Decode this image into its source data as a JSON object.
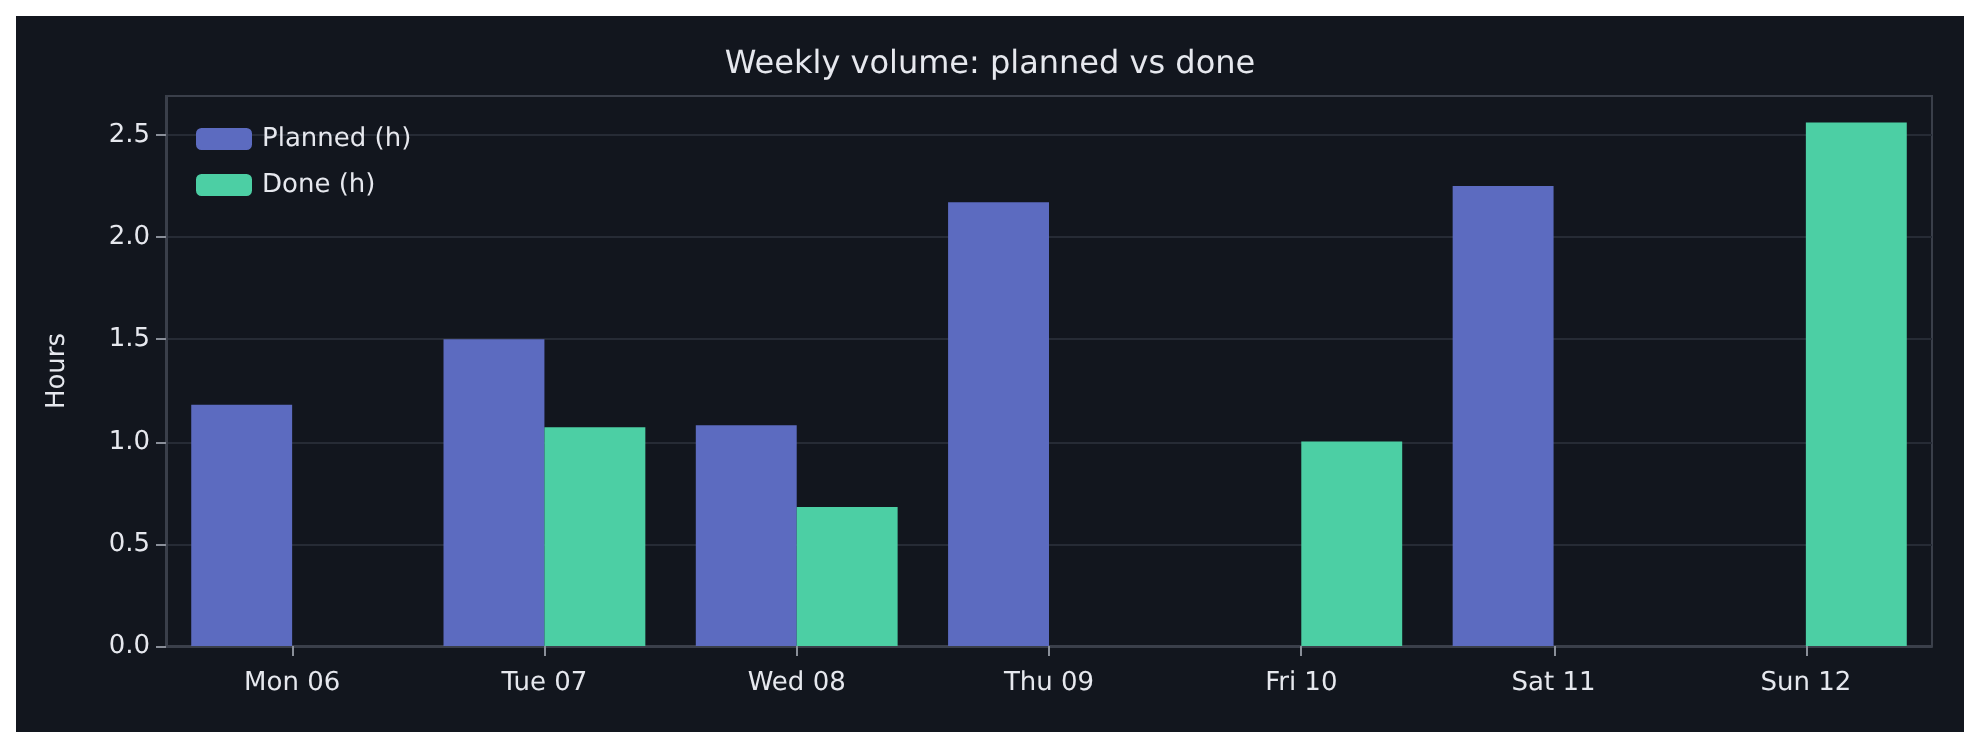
{
  "chart_data": {
    "type": "bar",
    "title": "Weekly volume: planned vs done",
    "ylabel": "Hours",
    "categories": [
      "Mon 06",
      "Tue 07",
      "Wed 08",
      "Thu 09",
      "Fri 10",
      "Sat 11",
      "Sun 12"
    ],
    "series": [
      {
        "name": "Planned (h)",
        "color": "#5c6bc0",
        "values": [
          1.18,
          1.5,
          1.08,
          2.17,
          0,
          2.25,
          0
        ]
      },
      {
        "name": "Done (h)",
        "color": "#4ccfa4",
        "values": [
          0,
          1.07,
          0.68,
          0,
          1.0,
          0,
          2.56
        ]
      }
    ],
    "ylim": [
      0,
      2.69
    ],
    "yticks": [
      {
        "value": 0,
        "label": "0.0"
      },
      0.5,
      {
        "value": 1,
        "label": "1.0"
      },
      1.5,
      {
        "value": 2,
        "label": "2.0"
      },
      2.5
    ],
    "grid": "y",
    "legend": "top left"
  }
}
